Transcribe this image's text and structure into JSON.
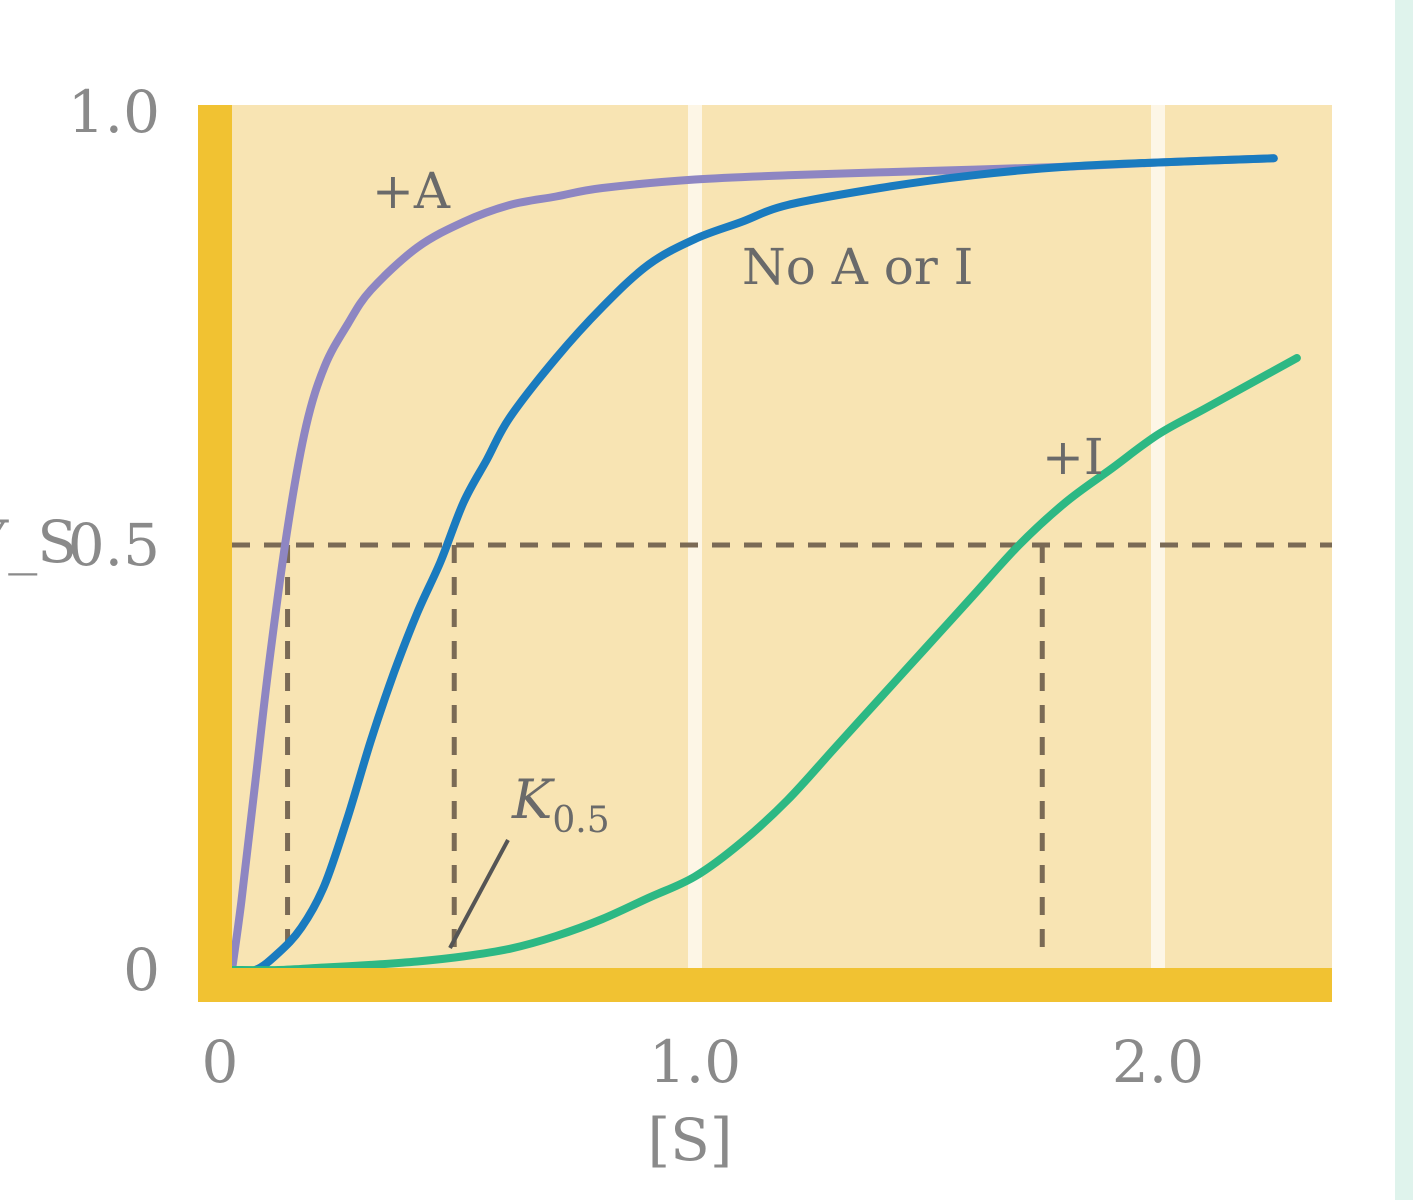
{
  "chart_data": {
    "type": "line",
    "xlabel": "[S]",
    "ylabel": "Y_S",
    "xlim": [
      0,
      2.35
    ],
    "ylim": [
      0,
      1.0
    ],
    "x_ticks": [
      {
        "value": 0,
        "label": "0"
      },
      {
        "value": 1.0,
        "label": "1.0"
      },
      {
        "value": 2.0,
        "label": "2.0"
      }
    ],
    "y_ticks": [
      {
        "value": 0,
        "label": "0"
      },
      {
        "value": 0.5,
        "label": "0.5"
      },
      {
        "value": 1.0,
        "label": "1.0"
      }
    ],
    "grid_x": [
      1.0,
      2.0
    ],
    "colors": {
      "plot_bg": "#f8e4b3",
      "axis": "#f1c232",
      "grid": "#fdf6e6",
      "activator": "#8e86c2",
      "none": "#1a7bbf",
      "inhibitor": "#2db884",
      "dashed": "#7a6a55"
    },
    "series": [
      {
        "name": "+A",
        "color": "#8e86c2",
        "x": [
          0.0,
          0.02,
          0.05,
          0.08,
          0.12,
          0.16,
          0.2,
          0.25,
          0.3,
          0.4,
          0.5,
          0.6,
          0.7,
          0.8,
          1.0,
          1.2,
          1.5,
          1.8,
          2.0,
          2.25
        ],
        "y": [
          0.0,
          0.08,
          0.22,
          0.36,
          0.52,
          0.64,
          0.71,
          0.76,
          0.8,
          0.85,
          0.88,
          0.9,
          0.91,
          0.92,
          0.93,
          0.935,
          0.94,
          0.945,
          0.95,
          0.955
        ]
      },
      {
        "name": "No A or I",
        "color": "#1a7bbf",
        "x": [
          0.0,
          0.05,
          0.1,
          0.15,
          0.2,
          0.25,
          0.3,
          0.35,
          0.4,
          0.45,
          0.5,
          0.55,
          0.6,
          0.7,
          0.8,
          0.9,
          1.0,
          1.1,
          1.2,
          1.4,
          1.6,
          1.8,
          2.0,
          2.25
        ],
        "y": [
          0.0,
          0.0,
          0.02,
          0.05,
          0.1,
          0.18,
          0.27,
          0.35,
          0.42,
          0.48,
          0.55,
          0.6,
          0.65,
          0.72,
          0.78,
          0.83,
          0.86,
          0.88,
          0.9,
          0.92,
          0.935,
          0.945,
          0.95,
          0.955
        ]
      },
      {
        "name": "+I",
        "color": "#2db884",
        "x": [
          0.0,
          0.1,
          0.2,
          0.3,
          0.4,
          0.5,
          0.6,
          0.7,
          0.8,
          0.9,
          1.0,
          1.1,
          1.2,
          1.3,
          1.4,
          1.5,
          1.6,
          1.7,
          1.8,
          1.9,
          2.0,
          2.1,
          2.2,
          2.3
        ],
        "y": [
          0.0,
          0.0,
          0.003,
          0.006,
          0.01,
          0.016,
          0.025,
          0.04,
          0.06,
          0.085,
          0.11,
          0.15,
          0.2,
          0.26,
          0.32,
          0.38,
          0.44,
          0.5,
          0.55,
          0.59,
          0.63,
          0.66,
          0.69,
          0.72
        ]
      }
    ],
    "half_saturation_line": 0.5,
    "k05_markers": [
      0.12,
      0.48,
      1.75
    ],
    "annotations": {
      "activator_label": "+A",
      "none_label": "No A or I",
      "inhibitor_label": "+I",
      "k_label": "K",
      "k_subscript": "0.5"
    }
  }
}
